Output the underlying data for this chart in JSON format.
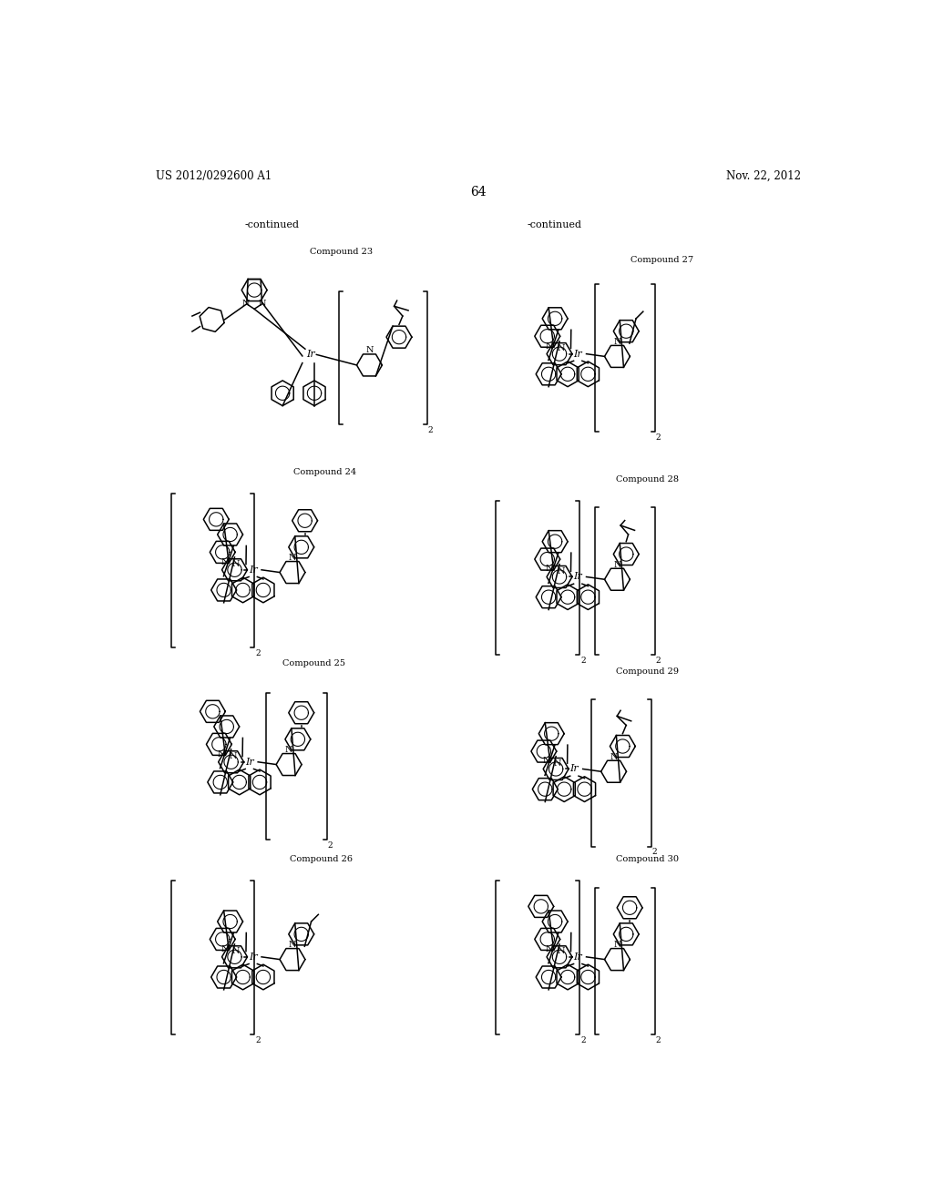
{
  "page_header_left": "US 2012/0292600 A1",
  "page_header_right": "Nov. 22, 2012",
  "page_number": "64",
  "continued_left": "-continued",
  "continued_right": "-continued",
  "background_color": "#ffffff",
  "compound_labels": [
    "Compound 23",
    "Compound 24",
    "Compound 25",
    "Compound 26",
    "Compound 27",
    "Compound 28",
    "Compound 29",
    "Compound 30"
  ],
  "lw": 1.1
}
